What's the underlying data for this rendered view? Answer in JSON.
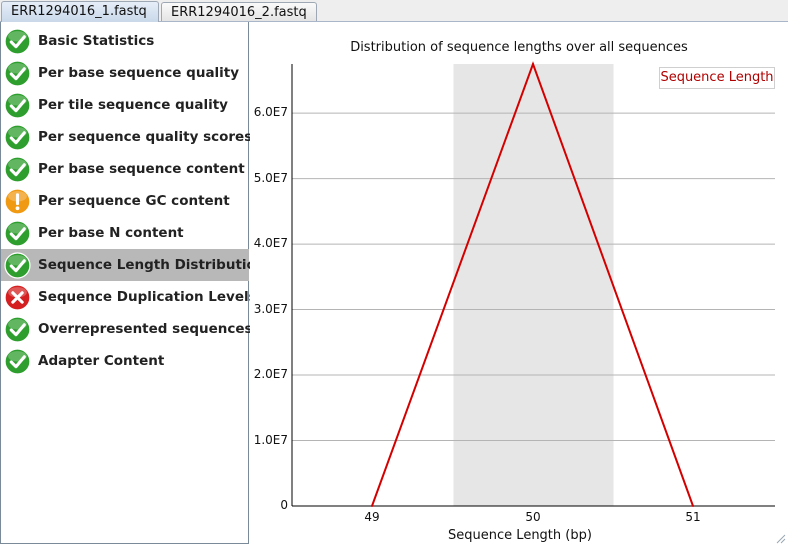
{
  "tabs": [
    {
      "label": "ERR1294016_1.fastq",
      "active": true
    },
    {
      "label": "ERR1294016_2.fastq",
      "active": false
    }
  ],
  "modules": [
    {
      "label": "Basic Statistics",
      "status": "pass",
      "icon": "check-icon"
    },
    {
      "label": "Per base sequence quality",
      "status": "pass",
      "icon": "check-icon"
    },
    {
      "label": "Per tile sequence quality",
      "status": "pass",
      "icon": "check-icon"
    },
    {
      "label": "Per sequence quality scores",
      "status": "pass",
      "icon": "check-icon"
    },
    {
      "label": "Per base sequence content",
      "status": "pass",
      "icon": "check-icon"
    },
    {
      "label": "Per sequence GC content",
      "status": "warn",
      "icon": "warning-icon"
    },
    {
      "label": "Per base N content",
      "status": "pass",
      "icon": "check-icon"
    },
    {
      "label": "Sequence Length Distribution",
      "status": "pass",
      "icon": "check-icon",
      "selected": true
    },
    {
      "label": "Sequence Duplication Levels",
      "status": "fail",
      "icon": "cross-icon"
    },
    {
      "label": "Overrepresented sequences",
      "status": "pass",
      "icon": "check-icon"
    },
    {
      "label": "Adapter Content",
      "status": "pass",
      "icon": "check-icon"
    }
  ],
  "colors": {
    "pass": "#2e9e2e",
    "warn": "#f09a14",
    "fail": "#d42020",
    "line": "#d40000",
    "band": "#e6e6e6",
    "grid": "#b4b4b4"
  },
  "chart_data": {
    "type": "line",
    "title": "Distribution of sequence lengths over all sequences",
    "xlabel": "Sequence Length (bp)",
    "ylabel": "",
    "categories": [
      "49",
      "50",
      "51"
    ],
    "series": [
      {
        "name": "Sequence Length",
        "values": [
          0,
          67500000,
          0
        ]
      }
    ],
    "yticks": [
      "0",
      "1.0E7",
      "2.0E7",
      "3.0E7",
      "4.0E7",
      "5.0E7",
      "6.0E7"
    ],
    "ylim": [
      0,
      67500000
    ],
    "highlight_category": "50",
    "grid": true,
    "legend": "top-right"
  }
}
